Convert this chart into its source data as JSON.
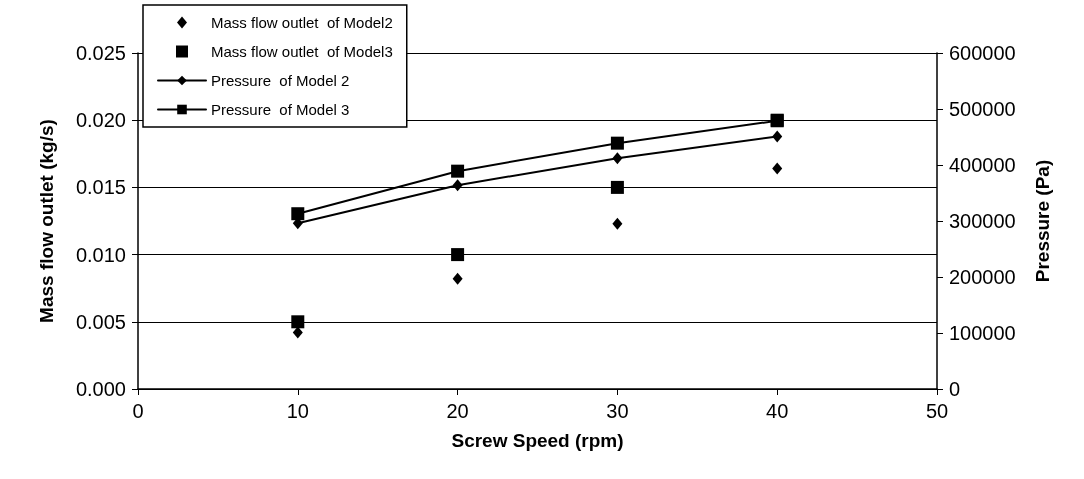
{
  "chart_data": {
    "type": "scatter",
    "xlabel": "Screw Speed (rpm)",
    "ylabel": "Mass flow outlet (kg/s)",
    "y2label": "Pressure (Pa)",
    "x": [
      10,
      20,
      30,
      40
    ],
    "xlim": [
      0,
      50
    ],
    "xticks": [
      0,
      10,
      20,
      30,
      40,
      50
    ],
    "ylim": [
      0,
      0.025
    ],
    "yticks": [
      {
        "value": 0,
        "label": "0.000"
      },
      {
        "value": 0.005,
        "label": "0.005"
      },
      {
        "value": 0.01,
        "label": "0.010"
      },
      {
        "value": 0.015,
        "label": "0.015"
      },
      {
        "value": 0.02,
        "label": "0.020"
      },
      {
        "value": 0.025,
        "label": "0.025"
      }
    ],
    "y2lim": [
      0,
      600000
    ],
    "y2ticks": [
      0,
      100000,
      200000,
      300000,
      400000,
      500000,
      600000
    ],
    "grid": "y",
    "legend": "top left",
    "series": [
      {
        "name": "Mass flow outlet  of Model2",
        "marker": "diamond",
        "color": "#000000",
        "values": [
          0.0042,
          0.0082,
          0.0123,
          0.0164
        ]
      },
      {
        "name": "Mass flow outlet  of Model3",
        "marker": "square",
        "color": "#000000",
        "values": [
          0.005,
          0.01,
          0.015,
          0.02
        ]
      },
      {
        "name": "Pressure  of Model 2",
        "type": "line",
        "marker": "diamond",
        "line_style": "solid",
        "axis": "y2",
        "color": "#000000",
        "values": [
          296000,
          364000,
          412000,
          451000
        ]
      },
      {
        "name": "Pressure  of Model 3",
        "type": "line",
        "marker": "square",
        "line_style": "solid",
        "axis": "y2",
        "color": "#000000",
        "values": [
          313000,
          389000,
          439000,
          479000
        ]
      }
    ]
  }
}
